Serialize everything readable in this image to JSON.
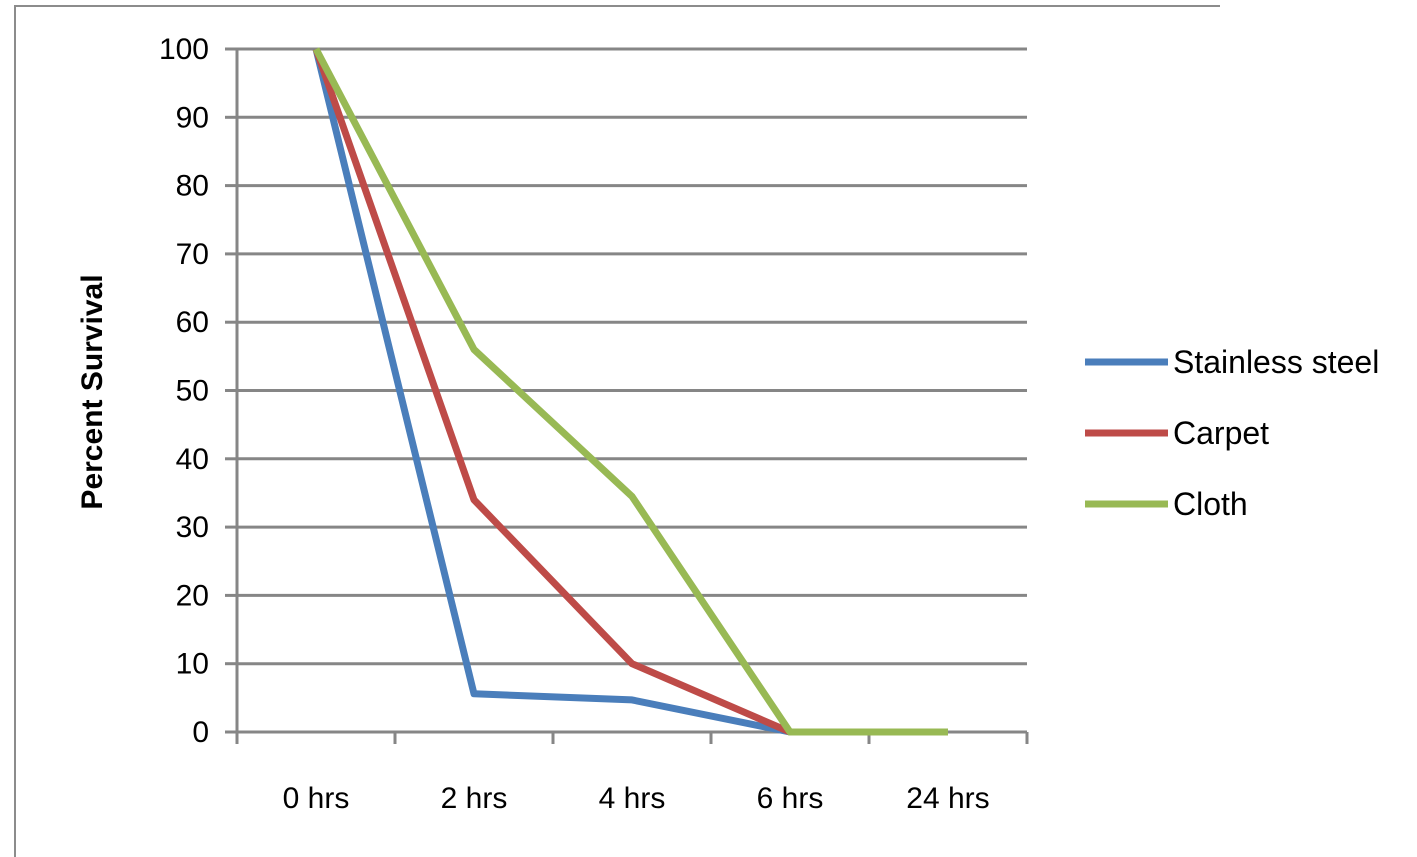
{
  "chart_data": {
    "type": "line",
    "title": "",
    "xlabel": "",
    "ylabel": "Percent Survival",
    "categories": [
      "0 hrs",
      "2 hrs",
      "4 hrs",
      "6 hrs",
      "24 hrs"
    ],
    "ylim": [
      0,
      100
    ],
    "yticks": [
      "0",
      "10",
      "20",
      "30",
      "40",
      "50",
      "60",
      "70",
      "80",
      "90",
      "100"
    ],
    "grid": true,
    "legend_position": "right",
    "series": [
      {
        "name": "Stainless steel",
        "color": "#4a7ebb",
        "values": [
          100,
          5.6,
          4.7,
          0,
          0
        ]
      },
      {
        "name": "Carpet",
        "color": "#be4b48",
        "values": [
          100,
          34,
          10,
          0,
          0
        ]
      },
      {
        "name": "Cloth",
        "color": "#98b954",
        "values": [
          100,
          56,
          34.5,
          0,
          0
        ]
      }
    ]
  }
}
